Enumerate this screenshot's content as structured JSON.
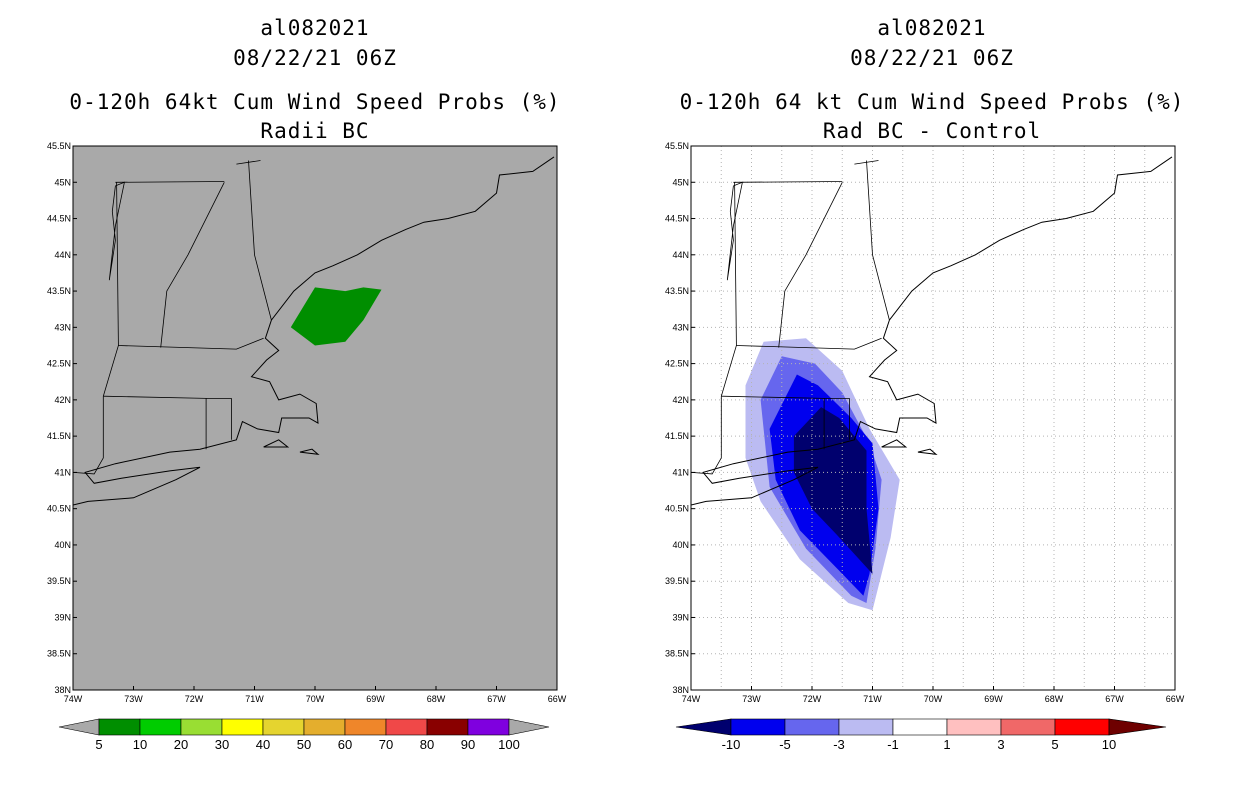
{
  "panels": [
    {
      "storm_id": "al082021",
      "datetime": "08/22/21 06Z",
      "title": "0-120h 64kt Cum Wind Speed Probs (%)",
      "subtitle": "Radii BC",
      "background": "#a9a9a9",
      "grid": false,
      "colorbar": {
        "labels": [
          "5",
          "10",
          "20",
          "30",
          "40",
          "50",
          "60",
          "70",
          "80",
          "90",
          "100"
        ],
        "colors": [
          "#008e00",
          "#00cc00",
          "#99de33",
          "#ffff00",
          "#e5d42f",
          "#e4ae2d",
          "#ef862a",
          "#f04848",
          "#890000",
          "#7f00df"
        ],
        "end_color": "#a9a9a9"
      }
    },
    {
      "storm_id": "al082021",
      "datetime": "08/22/21 06Z",
      "title": "0-120h 64 kt Cum Wind Speed Probs (%)",
      "subtitle": "Rad BC - Control",
      "background": "#ffffff",
      "grid": true,
      "colorbar": {
        "labels": [
          "-10",
          "-5",
          "-3",
          "-1",
          "1",
          "3",
          "5",
          "10"
        ],
        "colors": [
          "#00006e",
          "#0000ee",
          "#6666ee",
          "#bbbbf2",
          "#ffffff",
          "#ffc0c0",
          "#f06868",
          "#ff0000",
          "#6e0000"
        ]
      }
    }
  ],
  "axes": {
    "lat_labels": [
      "45.5N",
      "45N",
      "44.5N",
      "44N",
      "43.5N",
      "43N",
      "42.5N",
      "42N",
      "41.5N",
      "41N",
      "40.5N",
      "40N",
      "39.5N",
      "39N",
      "38.5N",
      "38N"
    ],
    "lon_labels": [
      "74W",
      "73W",
      "72W",
      "71W",
      "70W",
      "69W",
      "68W",
      "67W",
      "66W"
    ],
    "lat_range": [
      38,
      45.5
    ],
    "lon_range": [
      -74,
      -66
    ]
  },
  "map_layers": {
    "coastline": [
      [
        -74,
        40.55
      ],
      [
        -73.75,
        40.6
      ],
      [
        -73.0,
        40.65
      ],
      [
        -72.3,
        40.9
      ],
      [
        -71.9,
        41.07
      ],
      [
        -72.4,
        41.02
      ],
      [
        -73.2,
        40.92
      ],
      [
        -73.65,
        40.85
      ],
      [
        -73.8,
        41.0
      ],
      [
        -73.3,
        41.12
      ],
      [
        -72.4,
        41.28
      ],
      [
        -71.9,
        41.32
      ],
      [
        -71.3,
        41.45
      ],
      [
        -71.2,
        41.7
      ],
      [
        -70.95,
        41.6
      ],
      [
        -70.6,
        41.55
      ],
      [
        -70.55,
        41.75
      ],
      [
        -70.1,
        41.75
      ],
      [
        -69.95,
        41.68
      ],
      [
        -69.98,
        41.95
      ],
      [
        -70.25,
        42.08
      ],
      [
        -70.6,
        42.0
      ],
      [
        -70.75,
        42.25
      ],
      [
        -71.05,
        42.32
      ],
      [
        -70.8,
        42.55
      ],
      [
        -70.6,
        42.68
      ],
      [
        -70.82,
        42.85
      ],
      [
        -70.72,
        43.1
      ],
      [
        -70.35,
        43.5
      ],
      [
        -70.0,
        43.75
      ],
      [
        -69.7,
        43.85
      ],
      [
        -69.3,
        44.0
      ],
      [
        -68.9,
        44.2
      ],
      [
        -68.5,
        44.35
      ],
      [
        -68.2,
        44.45
      ],
      [
        -67.8,
        44.5
      ],
      [
        -67.35,
        44.6
      ],
      [
        -67.0,
        44.85
      ],
      [
        -66.95,
        45.1
      ],
      [
        -66.4,
        45.15
      ],
      [
        -66.05,
        45.35
      ]
    ],
    "islands": [
      [
        [
          -70.85,
          41.35
        ],
        [
          -70.45,
          41.35
        ],
        [
          -70.6,
          41.45
        ],
        [
          -70.85,
          41.35
        ]
      ],
      [
        [
          -70.25,
          41.28
        ],
        [
          -69.95,
          41.25
        ],
        [
          -70.05,
          41.32
        ],
        [
          -70.25,
          41.28
        ]
      ]
    ],
    "borders": [
      [
        [
          -73.5,
          42.05
        ],
        [
          -73.25,
          42.75
        ],
        [
          -73.28,
          45.0
        ]
      ],
      [
        [
          -71.8,
          42.02
        ],
        [
          -71.8,
          41.32
        ]
      ],
      [
        [
          -73.5,
          42.05
        ],
        [
          -71.8,
          42.02
        ],
        [
          -71.38,
          42.02
        ]
      ],
      [
        [
          -71.38,
          42.02
        ],
        [
          -71.38,
          41.45
        ]
      ],
      [
        [
          -73.25,
          42.75
        ],
        [
          -71.3,
          42.7
        ],
        [
          -70.85,
          42.85
        ]
      ],
      [
        [
          -72.55,
          42.72
        ],
        [
          -72.45,
          43.5
        ],
        [
          -72.1,
          44.0
        ],
        [
          -71.5,
          45.0
        ]
      ],
      [
        [
          -71.1,
          45.3
        ],
        [
          -71.0,
          44.0
        ],
        [
          -70.72,
          43.1
        ]
      ],
      [
        [
          -73.3,
          45.0
        ],
        [
          -71.5,
          45.01
        ]
      ],
      [
        [
          -71.3,
          45.25
        ],
        [
          -70.9,
          45.3
        ]
      ],
      [
        [
          -74,
          41.0
        ],
        [
          -73.65,
          40.98
        ],
        [
          -73.5,
          41.2
        ],
        [
          -73.5,
          42.05
        ]
      ]
    ],
    "lakes": [
      [
        [
          -73.3,
          44.95
        ],
        [
          -73.35,
          44.6
        ],
        [
          -73.3,
          44.2
        ],
        [
          -73.4,
          43.65
        ],
        [
          -73.3,
          44.4
        ],
        [
          -73.15,
          45.0
        ],
        [
          -73.3,
          44.95
        ]
      ]
    ],
    "colors": {
      "line": "#000000",
      "grid": "#b4b4b4"
    }
  },
  "fields": {
    "panel1": [
      {
        "color": "#008e00",
        "polygon": [
          [
            -70.4,
            43.0
          ],
          [
            -70.0,
            43.55
          ],
          [
            -69.5,
            43.5
          ],
          [
            -69.2,
            43.55
          ],
          [
            -68.9,
            43.52
          ],
          [
            -69.2,
            43.1
          ],
          [
            -69.5,
            42.8
          ],
          [
            -70.0,
            42.75
          ],
          [
            -70.4,
            43.0
          ]
        ]
      }
    ],
    "panel2": [
      {
        "color": "#bbbbf2",
        "polygon": [
          [
            -73.1,
            42.2
          ],
          [
            -72.8,
            42.8
          ],
          [
            -72.1,
            42.85
          ],
          [
            -71.5,
            42.4
          ],
          [
            -71.05,
            41.6
          ],
          [
            -70.55,
            40.9
          ],
          [
            -70.7,
            40.1
          ],
          [
            -71.0,
            39.1
          ],
          [
            -71.4,
            39.2
          ],
          [
            -72.2,
            39.8
          ],
          [
            -72.85,
            40.6
          ],
          [
            -73.1,
            41.2
          ],
          [
            -73.1,
            42.2
          ]
        ]
      },
      {
        "color": "#6666ee",
        "polygon": [
          [
            -72.85,
            42.0
          ],
          [
            -72.5,
            42.6
          ],
          [
            -71.95,
            42.5
          ],
          [
            -71.5,
            42.1
          ],
          [
            -71.05,
            41.4
          ],
          [
            -70.85,
            40.9
          ],
          [
            -70.95,
            39.95
          ],
          [
            -71.1,
            39.2
          ],
          [
            -71.35,
            39.3
          ],
          [
            -72.1,
            39.95
          ],
          [
            -72.7,
            40.8
          ],
          [
            -72.85,
            42.0
          ]
        ]
      },
      {
        "color": "#0000ee",
        "polygon": [
          [
            -72.7,
            41.6
          ],
          [
            -72.25,
            42.35
          ],
          [
            -71.9,
            42.2
          ],
          [
            -71.35,
            41.75
          ],
          [
            -71.0,
            41.4
          ],
          [
            -70.9,
            40.5
          ],
          [
            -71.05,
            39.6
          ],
          [
            -71.15,
            39.3
          ],
          [
            -71.5,
            39.6
          ],
          [
            -72.2,
            40.2
          ],
          [
            -72.6,
            40.9
          ],
          [
            -72.7,
            41.6
          ]
        ]
      },
      {
        "color": "#00006e",
        "polygon": [
          [
            -72.3,
            41.5
          ],
          [
            -71.85,
            41.9
          ],
          [
            -71.55,
            41.75
          ],
          [
            -71.1,
            41.3
          ],
          [
            -71.1,
            40.5
          ],
          [
            -71.0,
            39.6
          ],
          [
            -71.6,
            40.15
          ],
          [
            -72.0,
            40.5
          ],
          [
            -72.3,
            41.0
          ],
          [
            -72.3,
            41.5
          ]
        ]
      }
    ]
  }
}
